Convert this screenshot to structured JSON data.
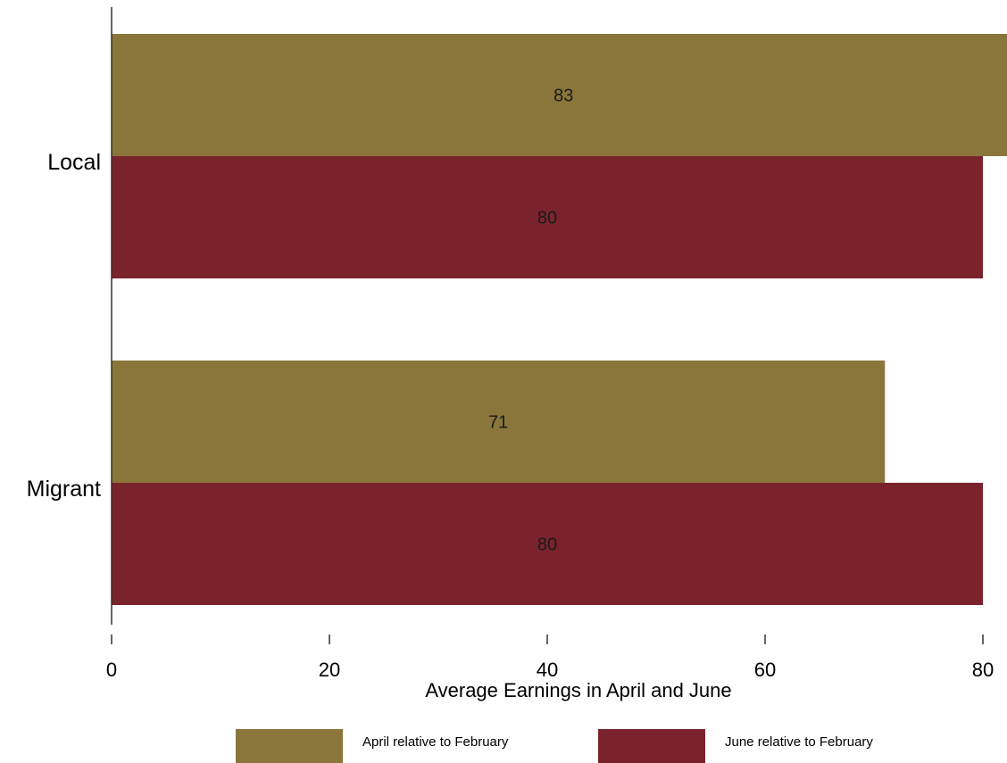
{
  "chart_data": {
    "type": "bar",
    "orientation": "horizontal",
    "categories": [
      "Local",
      "Migrant"
    ],
    "series": [
      {
        "name": "April relative to February",
        "values": [
          83,
          71
        ],
        "color": "#8a763a"
      },
      {
        "name": "June relative to February",
        "values": [
          80,
          80
        ],
        "color": "#7b232d"
      }
    ],
    "data_labels": [
      [
        "83",
        "71"
      ],
      [
        "80",
        "80"
      ]
    ],
    "xlabel": "Average Earnings in April and June",
    "ylabel": "",
    "xlim": [
      0,
      82
    ],
    "xticks": [
      0,
      20,
      40,
      60,
      80
    ],
    "grid": false,
    "legend_position": "bottom"
  }
}
